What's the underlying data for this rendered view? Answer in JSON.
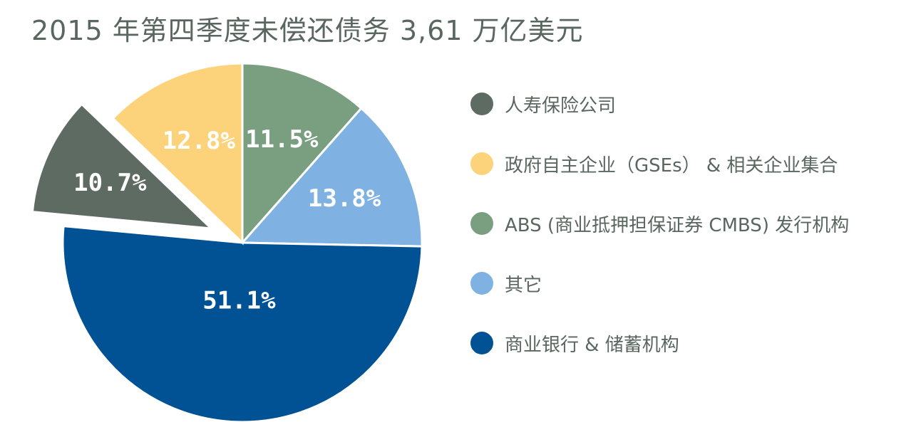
{
  "chart_data": {
    "type": "pie",
    "title": "2015 年第四季度未偿还债务 3,61 万亿美元",
    "categories": [
      "人寿保险公司",
      "政府自主企业（GSEs） & 相关企业集合",
      "ABS (商业抵押担保证券 CMBS) 发行机构",
      "其它",
      "商业银行 & 储蓄机构"
    ],
    "values": [
      10.7,
      12.8,
      11.5,
      13.8,
      51.1
    ],
    "labels": [
      "10.7%",
      "12.8%",
      "11.5%",
      "13.8%",
      "51.1%"
    ],
    "colors": [
      "#5e6b63",
      "#fcd27a",
      "#7a9e80",
      "#7fb2e2",
      "#005294"
    ],
    "exploded": [
      "人寿保险公司"
    ],
    "legend_position": "right"
  }
}
